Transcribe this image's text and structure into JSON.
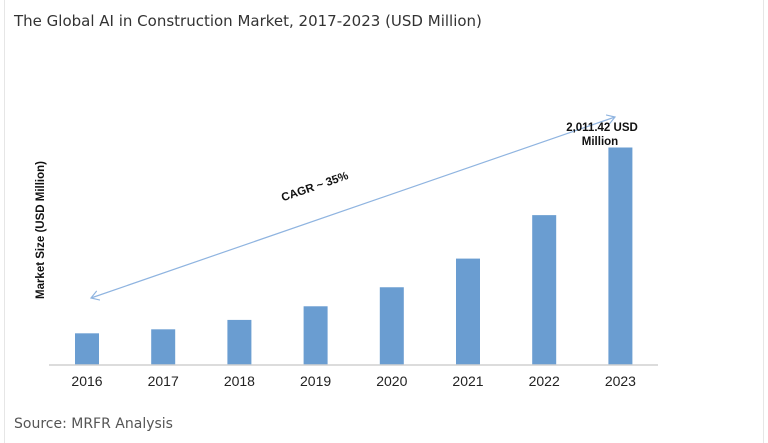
{
  "title": "The Global AI in Construction Market, 2017-2023 (USD Million)",
  "source": "Source: MRFR Analysis",
  "chart_data": {
    "type": "bar",
    "title": "The Global AI in Construction Market, 2017-2023 (USD Million)",
    "xlabel": "",
    "ylabel": "Market Size  (USD Million)",
    "categories": [
      "2016",
      "2017",
      "2018",
      "2019",
      "2020",
      "2021",
      "2022",
      "2023"
    ],
    "values": [
      293,
      330,
      417,
      543,
      719,
      984,
      1386,
      2011.42
    ],
    "ylim": [
      0,
      2011.42
    ],
    "grid": false,
    "bar_color": "#6a9dd1",
    "annotations": {
      "cagr": "CAGR ~ 35%",
      "last_value_line1": "2,011.42  USD",
      "last_value_line2": "Million"
    }
  }
}
